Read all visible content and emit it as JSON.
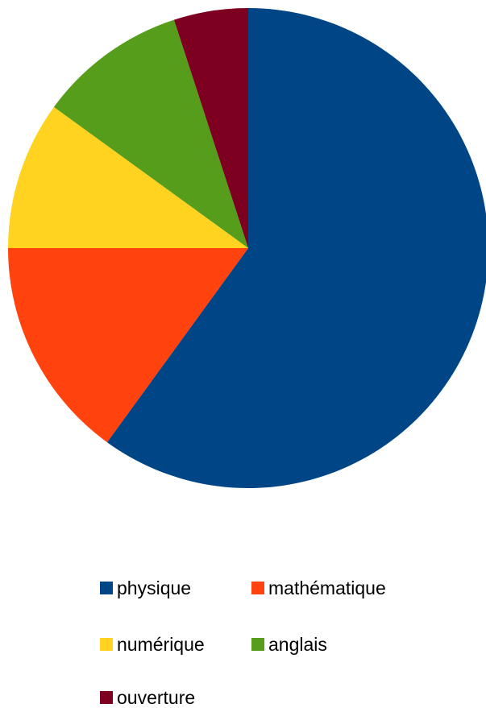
{
  "chart_data": {
    "type": "pie",
    "title": "",
    "legend_position": "bottom",
    "slices": [
      {
        "label": "physique",
        "value": 60,
        "color": "#004586"
      },
      {
        "label": "mathématique",
        "value": 15,
        "color": "#ff420e"
      },
      {
        "label": "numérique",
        "value": 10,
        "color": "#ffd320"
      },
      {
        "label": "anglais",
        "value": 10,
        "color": "#579d1c"
      },
      {
        "label": "ouverture",
        "value": 5,
        "color": "#7e0021"
      }
    ]
  }
}
